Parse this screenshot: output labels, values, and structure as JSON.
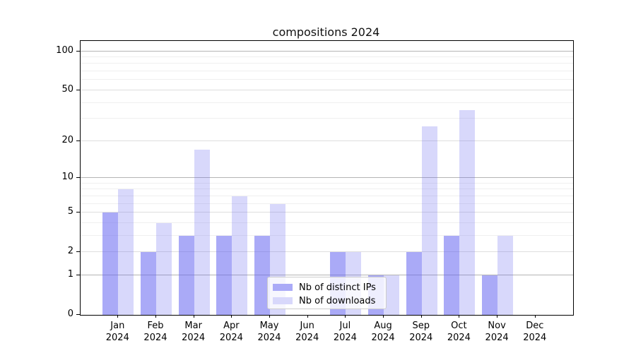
{
  "chart_data": {
    "type": "bar",
    "title": "compositions 2024",
    "categories": [
      "Jan",
      "Feb",
      "Mar",
      "Apr",
      "May",
      "Jun",
      "Jul",
      "Aug",
      "Sep",
      "Oct",
      "Nov",
      "Dec"
    ],
    "year_label": "2024",
    "series": [
      {
        "name": "Nb of distinct IPs",
        "values": [
          5,
          2,
          3,
          3,
          3,
          0,
          2,
          1,
          2,
          3,
          1,
          0
        ],
        "color": "rgba(100,100,240,0.55)",
        "legend_color": "#aaaaf7"
      },
      {
        "name": "Nb of downloads",
        "values": [
          8,
          4,
          17,
          7,
          6,
          0,
          2,
          1,
          26,
          35,
          3,
          0
        ],
        "color": "rgba(100,100,240,0.25)",
        "legend_color": "#d8d8fb"
      }
    ],
    "y_axis": {
      "scale": "symlog (pixel ∝ log10(1+v))",
      "major_ticks": [
        0,
        1,
        2,
        5,
        10,
        20,
        50,
        100
      ],
      "minor_ticks": [
        3,
        4,
        6,
        7,
        8,
        9,
        30,
        40,
        60,
        70,
        80,
        90
      ],
      "decade_ticks": [
        1,
        10,
        100
      ],
      "ylim": [
        0,
        120
      ]
    },
    "grid": true,
    "legend": {
      "position": "lower center",
      "entries": [
        "Nb of distinct IPs",
        "Nb of downloads"
      ]
    }
  }
}
